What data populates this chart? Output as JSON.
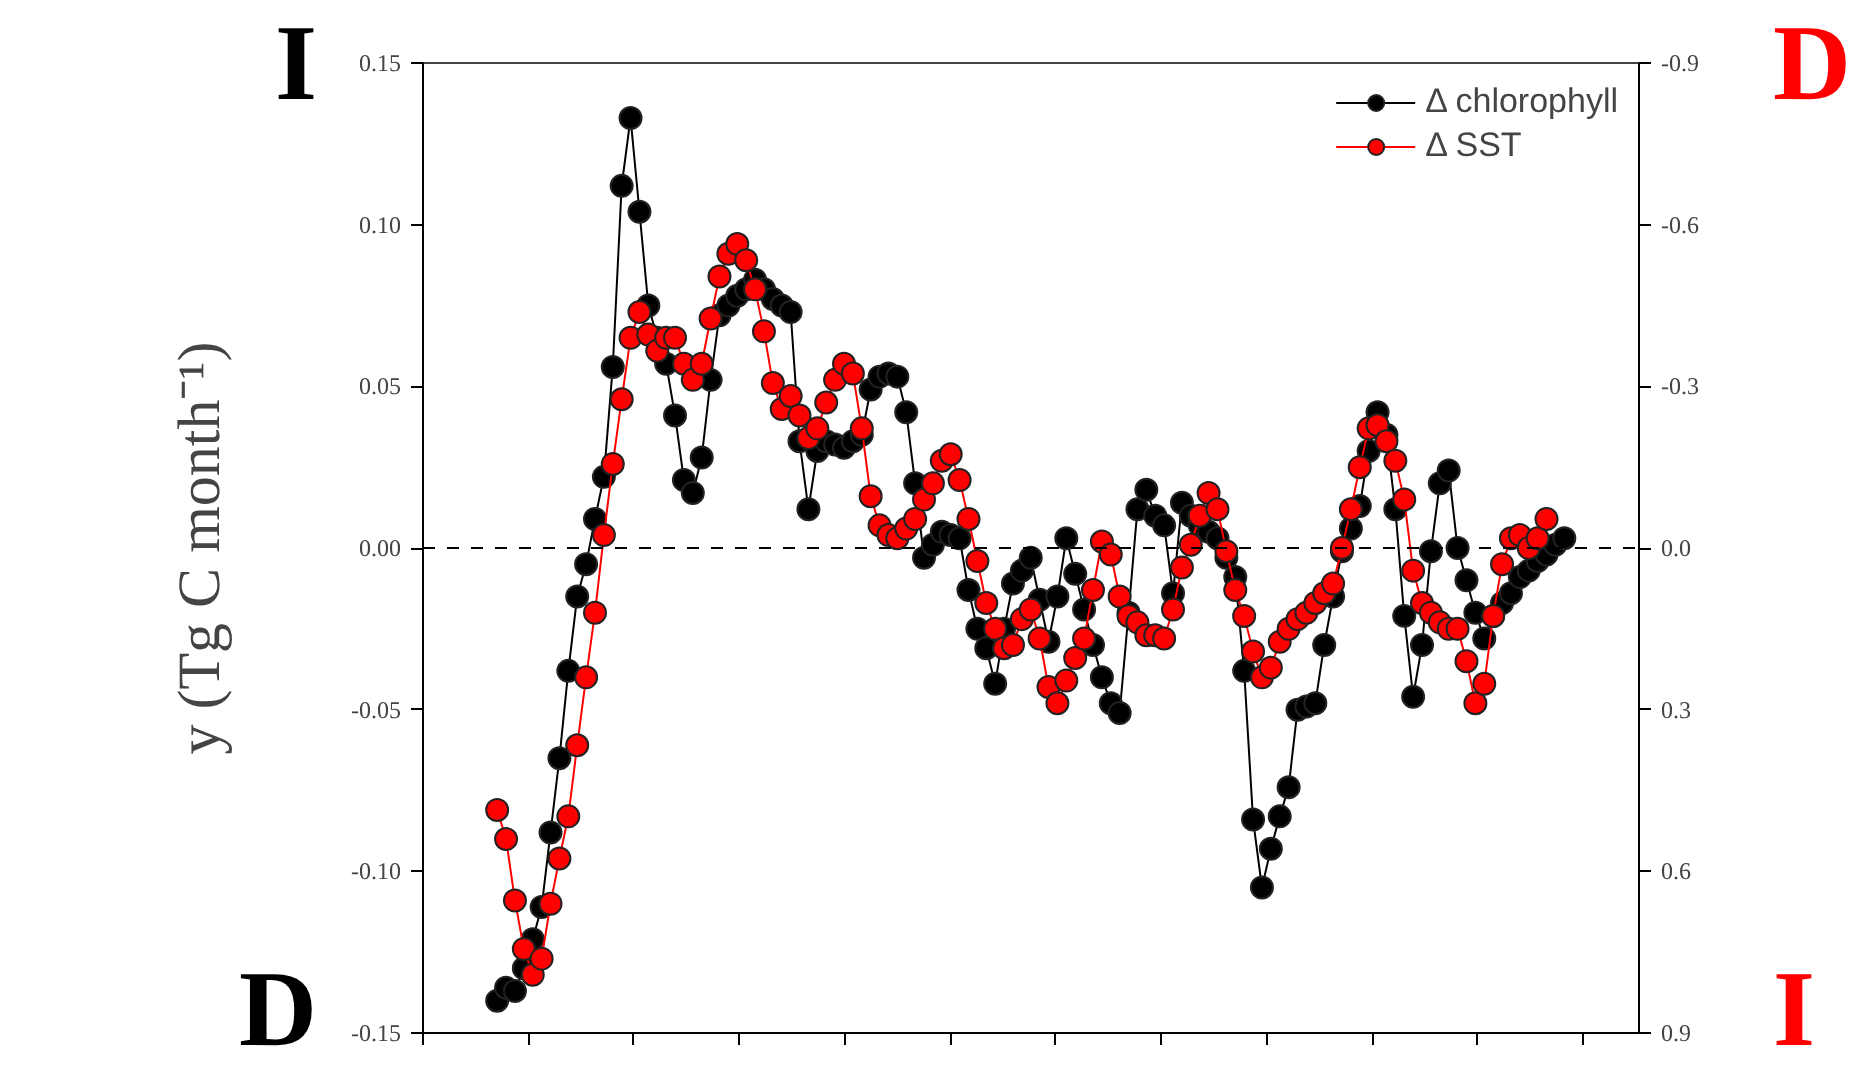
{
  "chart_data": {
    "type": "line",
    "ylabel": "y (Tg C month⁻¹)",
    "categories": [
      null,
      null,
      null,
      null,
      null,
      null,
      null,
      null,
      null,
      null,
      null,
      null,
      null,
      null,
      null,
      null,
      null,
      null,
      null,
      null,
      null,
      null,
      null,
      null,
      null,
      null,
      null,
      null,
      null,
      null,
      null,
      null,
      null,
      null,
      null,
      null,
      null,
      null,
      null,
      null,
      null,
      null,
      null,
      null,
      null,
      null,
      null,
      null,
      null,
      null,
      null,
      null,
      null,
      null,
      null,
      null,
      null,
      null,
      null,
      null,
      null,
      null,
      null,
      null,
      null,
      null,
      null,
      null,
      null,
      null,
      null,
      null,
      null,
      null,
      null,
      null,
      null,
      null,
      null,
      null,
      null,
      null,
      null,
      null,
      null,
      null,
      null,
      null,
      null,
      null,
      null,
      null,
      null,
      null,
      null,
      null,
      null,
      null,
      null,
      null,
      null,
      null,
      null,
      null,
      null,
      null,
      null,
      null,
      null,
      null,
      null,
      null,
      null,
      null,
      null,
      null,
      null,
      null,
      null,
      null,
      null
    ],
    "ylim": [
      -0.15,
      0.15
    ],
    "yticks": [
      {
        "value": -0.15,
        "label": "-0.15"
      },
      {
        "value": -0.1,
        "label": "-0.10"
      },
      {
        "value": -0.05,
        "label": "-0.05"
      },
      {
        "value": 0,
        "label": "0.00"
      },
      {
        "value": 0.05,
        "label": "0.05"
      },
      {
        "value": 0.1,
        "label": "0.10"
      },
      {
        "value": 0.15,
        "label": "0.15"
      }
    ],
    "y2lim": [
      0.9,
      -0.9
    ],
    "y2ticks": [
      {
        "value": -0.9,
        "label": "-0.9"
      },
      {
        "value": -0.6,
        "label": "-0.6"
      },
      {
        "value": -0.3,
        "label": "-0.3"
      },
      {
        "value": 0,
        "label": "0.0"
      },
      {
        "value": 0.3,
        "label": "0.3"
      },
      {
        "value": 0.6,
        "label": "0.6"
      },
      {
        "value": 0.9,
        "label": "0.9"
      }
    ],
    "ref_lines": [
      {
        "axis": "y",
        "value": 0,
        "line_style": "dashed",
        "color": "#000000"
      }
    ],
    "annotations": [
      "I",
      "D",
      "D",
      "I"
    ],
    "legend": "top right",
    "marker": "circle",
    "line_style": "solid",
    "series": [
      {
        "name": "Δ chlorophyll",
        "color": "#000000",
        "values": [
          -0.14,
          -0.136,
          -0.137,
          -0.13,
          -0.121,
          -0.111,
          -0.088,
          -0.065,
          -0.038,
          -0.015,
          -0.005,
          0.009,
          0.022,
          0.056,
          0.112,
          0.133,
          0.104,
          0.075,
          0.065,
          0.057,
          0.041,
          0.021,
          0.017,
          0.028,
          0.052,
          0.072,
          0.075,
          0.078,
          0.08,
          0.083,
          0.08,
          0.077,
          0.075,
          0.073,
          0.033,
          0.012,
          0.03,
          0.033,
          0.032,
          0.031,
          0.033,
          0.035,
          0.049,
          0.053,
          0.054,
          0.053,
          0.042,
          0.02,
          -0.003,
          0.001,
          0.005,
          0.004,
          0.003,
          -0.013,
          -0.025,
          -0.031,
          -0.042,
          -0.025,
          -0.011,
          -0.007,
          -0.003,
          -0.016,
          -0.029,
          -0.015,
          0.003,
          -0.008,
          -0.019,
          -0.03,
          -0.04,
          -0.048,
          -0.051,
          -0.02,
          0.012,
          0.018,
          0.01,
          0.007,
          -0.014,
          0.014,
          0.01,
          0.007,
          0.005,
          0.003,
          -0.003,
          -0.009,
          -0.038,
          -0.084,
          -0.105,
          -0.093,
          -0.083,
          -0.074,
          -0.05,
          -0.049,
          -0.048,
          -0.03,
          -0.015,
          -0.001,
          0.006,
          0.013,
          0.03,
          0.042,
          0.035,
          0.012,
          -0.021,
          -0.046,
          -0.03,
          -0.001,
          0.02,
          0.024,
          0.0,
          -0.01,
          -0.02,
          -0.028,
          -0.021,
          -0.017,
          -0.014,
          -0.009,
          -0.007,
          -0.004,
          -0.002,
          0.001,
          0.003
        ]
      },
      {
        "name": "Δ SST",
        "color": "#ff0000",
        "values": [
          -0.081,
          -0.09,
          -0.109,
          -0.124,
          -0.132,
          -0.127,
          -0.11,
          -0.096,
          -0.083,
          -0.061,
          -0.04,
          -0.02,
          0.004,
          0.026,
          0.046,
          0.065,
          0.073,
          0.066,
          0.061,
          0.065,
          0.065,
          0.057,
          0.052,
          0.057,
          0.071,
          0.084,
          0.091,
          0.094,
          0.089,
          0.08,
          0.067,
          0.051,
          0.043,
          0.047,
          0.041,
          0.034,
          0.037,
          0.045,
          0.052,
          0.057,
          0.054,
          0.037,
          0.016,
          0.007,
          0.004,
          0.003,
          0.006,
          0.009,
          0.015,
          0.02,
          0.027,
          0.029,
          0.021,
          0.009,
          -0.004,
          -0.017,
          -0.025,
          -0.031,
          -0.03,
          -0.022,
          -0.019,
          -0.028,
          -0.043,
          -0.048,
          -0.041,
          -0.034,
          -0.028,
          -0.013,
          0.002,
          -0.002,
          -0.015,
          -0.021,
          -0.023,
          -0.027,
          -0.027,
          -0.028,
          -0.019,
          -0.006,
          0.001,
          0.01,
          0.017,
          0.012,
          -0.001,
          -0.013,
          -0.021,
          -0.032,
          -0.04,
          -0.037,
          -0.029,
          -0.025,
          -0.022,
          -0.02,
          -0.017,
          -0.014,
          -0.011,
          0.0,
          0.012,
          0.025,
          0.037,
          0.038,
          0.033,
          0.027,
          0.015,
          -0.007,
          -0.017,
          -0.02,
          -0.023,
          -0.025,
          -0.025,
          -0.035,
          -0.048,
          -0.042,
          -0.021,
          -0.005,
          0.003,
          0.004,
          0.0,
          0.003,
          0.009,
          null,
          null
        ]
      }
    ]
  }
}
